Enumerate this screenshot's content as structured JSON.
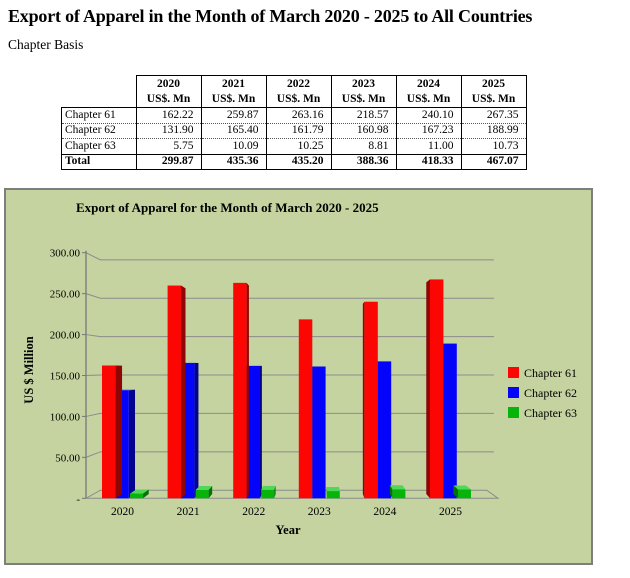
{
  "page": {
    "title": "Export of Apparel in the Month of March 2020 - 2025 to All Countries",
    "subtitle": "Chapter Basis"
  },
  "table": {
    "unit_label": "US$. Mn",
    "years": [
      "2020",
      "2021",
      "2022",
      "2023",
      "2024",
      "2025"
    ],
    "rows": [
      {
        "label": "Chapter 61",
        "values": [
          "162.22",
          "259.87",
          "263.16",
          "218.57",
          "240.10",
          "267.35"
        ],
        "bold": false
      },
      {
        "label": "Chapter 62",
        "values": [
          "131.90",
          "165.40",
          "161.79",
          "160.98",
          "167.23",
          "188.99"
        ],
        "bold": false
      },
      {
        "label": "Chapter 63",
        "values": [
          "5.75",
          "10.09",
          "10.25",
          "8.81",
          "11.00",
          "10.73"
        ],
        "bold": false
      },
      {
        "label": "Total",
        "values": [
          "299.87",
          "435.36",
          "435.20",
          "388.36",
          "418.33",
          "467.07"
        ],
        "bold": true
      }
    ]
  },
  "chart_data": {
    "type": "bar",
    "title": "Export of Apparel for the Month of March 2020 - 2025",
    "categories": [
      "2020",
      "2021",
      "2022",
      "2023",
      "2024",
      "2025"
    ],
    "series": [
      {
        "name": "Chapter 61",
        "color": "#fb0603",
        "side_color": "#8e0503",
        "top_color": "#fd5a50",
        "values": [
          162.22,
          259.87,
          263.16,
          218.57,
          240.1,
          267.35
        ]
      },
      {
        "name": "Chapter 62",
        "color": "#0504fb",
        "side_color": "#04038e",
        "top_color": "#5a58fd",
        "values": [
          131.9,
          165.4,
          161.79,
          160.98,
          167.23,
          188.99
        ]
      },
      {
        "name": "Chapter 63",
        "color": "#06b40a",
        "side_color": "#047206",
        "top_color": "#52d65a",
        "values": [
          5.75,
          10.09,
          10.25,
          8.81,
          11.0,
          10.73
        ]
      }
    ],
    "xlabel": "Year",
    "ylabel": "US $ Million",
    "ylim": [
      0,
      300
    ],
    "ytick_step": 50,
    "ytick_labels": [
      "-",
      "50.00",
      "100.00",
      "150.00",
      "200.00",
      "250.00",
      "300.00"
    ],
    "legend_position": "right",
    "grid": true,
    "background_color": "#c5d3a0",
    "gridline_color": "#8c8c8c",
    "axis_color": "#787878"
  }
}
